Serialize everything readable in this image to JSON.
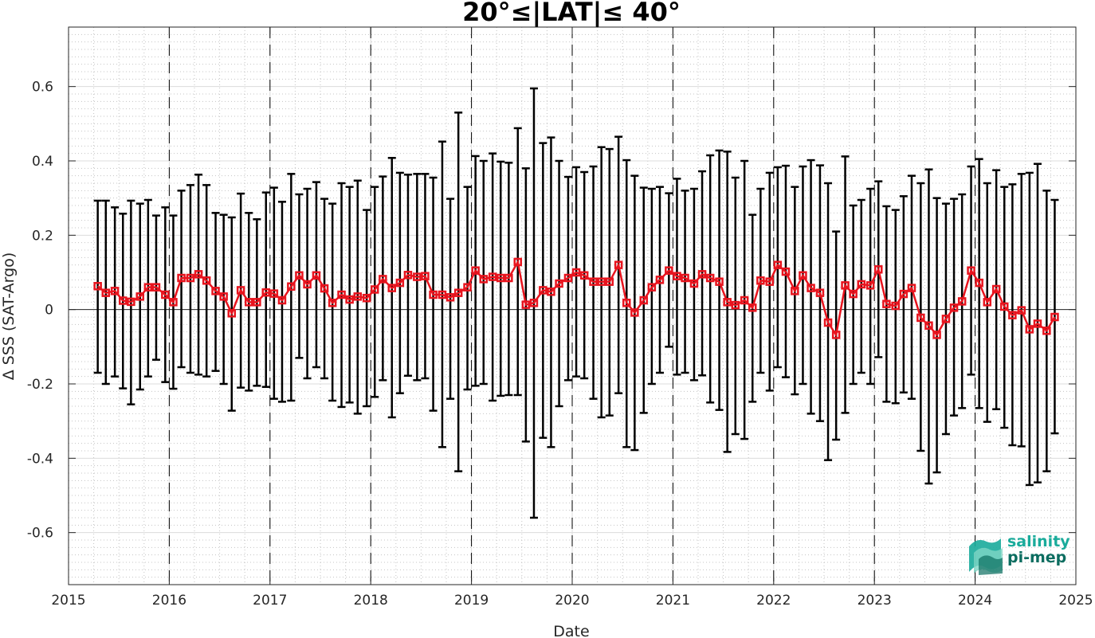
{
  "logo": {
    "line1": "salinity",
    "line2": "pi-mep",
    "color1": "#1aab9b",
    "color2": "#0c6d60"
  },
  "colors": {
    "series": "#e8141e",
    "errorbar": "#000000",
    "year_line": "#000000"
  },
  "chart_data": {
    "type": "line",
    "title": "20°≤|LAT|≤ 40°",
    "xlabel": "Date",
    "ylabel": "Δ SSS (SAT-Argo)",
    "xlim": [
      2015,
      2025
    ],
    "ylim": [
      -0.74,
      0.76
    ],
    "grid": "major and minor",
    "xticks": [
      "2015",
      "2016",
      "2017",
      "2018",
      "2019",
      "2020",
      "2021",
      "2022",
      "2023",
      "2024",
      "2025"
    ],
    "yticks": [
      "-0.6",
      "-0.4",
      "-0.2",
      "0",
      "0.2",
      "0.4",
      "0.6"
    ],
    "ytick_values": [
      -0.6,
      -0.4,
      -0.2,
      0,
      0.2,
      0.4,
      0.6
    ],
    "year_dividers": [
      2016,
      2017,
      2018,
      2019,
      2020,
      2021,
      2022,
      2023,
      2024
    ],
    "series": [
      {
        "marker": "square",
        "x": [
          2015.29,
          2015.37,
          2015.46,
          2015.54,
          2015.62,
          2015.71,
          2015.79,
          2015.87,
          2015.96,
          2016.04,
          2016.12,
          2016.21,
          2016.29,
          2016.37,
          2016.46,
          2016.54,
          2016.62,
          2016.71,
          2016.79,
          2016.87,
          2016.96,
          2017.04,
          2017.12,
          2017.21,
          2017.29,
          2017.37,
          2017.46,
          2017.54,
          2017.62,
          2017.71,
          2017.79,
          2017.87,
          2017.96,
          2018.04,
          2018.12,
          2018.21,
          2018.29,
          2018.37,
          2018.46,
          2018.54,
          2018.62,
          2018.71,
          2018.79,
          2018.87,
          2018.96,
          2019.04,
          2019.12,
          2019.21,
          2019.29,
          2019.37,
          2019.46,
          2019.54,
          2019.62,
          2019.71,
          2019.79,
          2019.87,
          2019.96,
          2020.04,
          2020.12,
          2020.21,
          2020.29,
          2020.37,
          2020.46,
          2020.54,
          2020.62,
          2020.71,
          2020.79,
          2020.87,
          2020.96,
          2021.04,
          2021.12,
          2021.21,
          2021.29,
          2021.37,
          2021.46,
          2021.54,
          2021.62,
          2021.71,
          2021.79,
          2021.87,
          2021.96,
          2022.04,
          2022.12,
          2022.21,
          2022.29,
          2022.37,
          2022.46,
          2022.54,
          2022.62,
          2022.71,
          2022.79,
          2022.87,
          2022.96,
          2023.04,
          2023.12,
          2023.21,
          2023.29,
          2023.37,
          2023.46,
          2023.54,
          2023.62,
          2023.71,
          2023.79,
          2023.87,
          2023.96,
          2024.04,
          2024.12,
          2024.21,
          2024.29,
          2024.37,
          2024.46,
          2024.54,
          2024.62,
          2024.71,
          2024.79
        ],
        "y": [
          0.063,
          0.045,
          0.05,
          0.024,
          0.021,
          0.035,
          0.06,
          0.06,
          0.04,
          0.02,
          0.085,
          0.085,
          0.095,
          0.078,
          0.05,
          0.035,
          -0.01,
          0.052,
          0.02,
          0.02,
          0.046,
          0.043,
          0.025,
          0.062,
          0.092,
          0.068,
          0.092,
          0.057,
          0.018,
          0.04,
          0.027,
          0.035,
          0.031,
          0.054,
          0.082,
          0.058,
          0.072,
          0.093,
          0.088,
          0.09,
          0.04,
          0.04,
          0.033,
          0.045,
          0.06,
          0.105,
          0.082,
          0.088,
          0.085,
          0.085,
          0.128,
          0.013,
          0.018,
          0.052,
          0.048,
          0.07,
          0.085,
          0.1,
          0.092,
          0.075,
          0.075,
          0.075,
          0.12,
          0.018,
          -0.008,
          0.025,
          0.06,
          0.08,
          0.105,
          0.09,
          0.085,
          0.07,
          0.095,
          0.085,
          0.075,
          0.02,
          0.012,
          0.025,
          0.005,
          0.078,
          0.075,
          0.12,
          0.102,
          0.05,
          0.092,
          0.058,
          0.045,
          -0.035,
          -0.068,
          0.065,
          0.042,
          0.068,
          0.065,
          0.108,
          0.015,
          0.01,
          0.042,
          0.058,
          -0.022,
          -0.043,
          -0.068,
          -0.025,
          0.005,
          0.022,
          0.105,
          0.072,
          0.02,
          0.055,
          0.008,
          -0.015,
          -0.002,
          -0.053,
          -0.038,
          -0.057,
          -0.02
        ],
        "upper": [
          0.293,
          0.293,
          0.275,
          0.258,
          0.293,
          0.285,
          0.295,
          0.253,
          0.275,
          0.253,
          0.32,
          0.335,
          0.363,
          0.335,
          0.26,
          0.255,
          0.248,
          0.312,
          0.26,
          0.243,
          0.315,
          0.328,
          0.29,
          0.365,
          0.31,
          0.325,
          0.343,
          0.298,
          0.285,
          0.34,
          0.33,
          0.347,
          0.268,
          0.33,
          0.358,
          0.408,
          0.368,
          0.363,
          0.365,
          0.365,
          0.355,
          0.452,
          0.298,
          0.53,
          0.33,
          0.413,
          0.4,
          0.42,
          0.398,
          0.395,
          0.488,
          0.38,
          0.595,
          0.448,
          0.463,
          0.4,
          0.357,
          0.383,
          0.37,
          0.385,
          0.437,
          0.432,
          0.465,
          0.402,
          0.36,
          0.328,
          0.325,
          0.33,
          0.313,
          0.352,
          0.32,
          0.325,
          0.372,
          0.415,
          0.428,
          0.425,
          0.355,
          0.4,
          0.255,
          0.325,
          0.368,
          0.383,
          0.387,
          0.33,
          0.385,
          0.402,
          0.388,
          0.34,
          0.21,
          0.412,
          0.28,
          0.295,
          0.325,
          0.345,
          0.278,
          0.268,
          0.305,
          0.36,
          0.34,
          0.377,
          0.3,
          0.285,
          0.298,
          0.31,
          0.385,
          0.405,
          0.34,
          0.375,
          0.33,
          0.337,
          0.365,
          0.368,
          0.392,
          0.32,
          0.295
        ],
        "lower": [
          -0.17,
          -0.2,
          -0.18,
          -0.212,
          -0.255,
          -0.215,
          -0.18,
          -0.135,
          -0.195,
          -0.213,
          -0.155,
          -0.17,
          -0.175,
          -0.18,
          -0.165,
          -0.2,
          -0.272,
          -0.21,
          -0.218,
          -0.205,
          -0.208,
          -0.24,
          -0.248,
          -0.245,
          -0.13,
          -0.185,
          -0.155,
          -0.185,
          -0.245,
          -0.262,
          -0.25,
          -0.28,
          -0.26,
          -0.235,
          -0.19,
          -0.29,
          -0.225,
          -0.178,
          -0.19,
          -0.185,
          -0.272,
          -0.37,
          -0.24,
          -0.435,
          -0.215,
          -0.205,
          -0.2,
          -0.245,
          -0.232,
          -0.23,
          -0.23,
          -0.355,
          -0.56,
          -0.345,
          -0.37,
          -0.26,
          -0.19,
          -0.18,
          -0.185,
          -0.24,
          -0.29,
          -0.285,
          -0.225,
          -0.37,
          -0.378,
          -0.278,
          -0.2,
          -0.17,
          -0.1,
          -0.175,
          -0.17,
          -0.19,
          -0.177,
          -0.25,
          -0.27,
          -0.383,
          -0.335,
          -0.348,
          -0.248,
          -0.17,
          -0.218,
          -0.155,
          -0.182,
          -0.228,
          -0.2,
          -0.28,
          -0.3,
          -0.405,
          -0.35,
          -0.278,
          -0.2,
          -0.17,
          -0.2,
          -0.128,
          -0.248,
          -0.252,
          -0.223,
          -0.24,
          -0.38,
          -0.468,
          -0.438,
          -0.335,
          -0.285,
          -0.265,
          -0.175,
          -0.265,
          -0.302,
          -0.268,
          -0.318,
          -0.365,
          -0.368,
          -0.472,
          -0.465,
          -0.435,
          -0.333
        ]
      }
    ]
  }
}
